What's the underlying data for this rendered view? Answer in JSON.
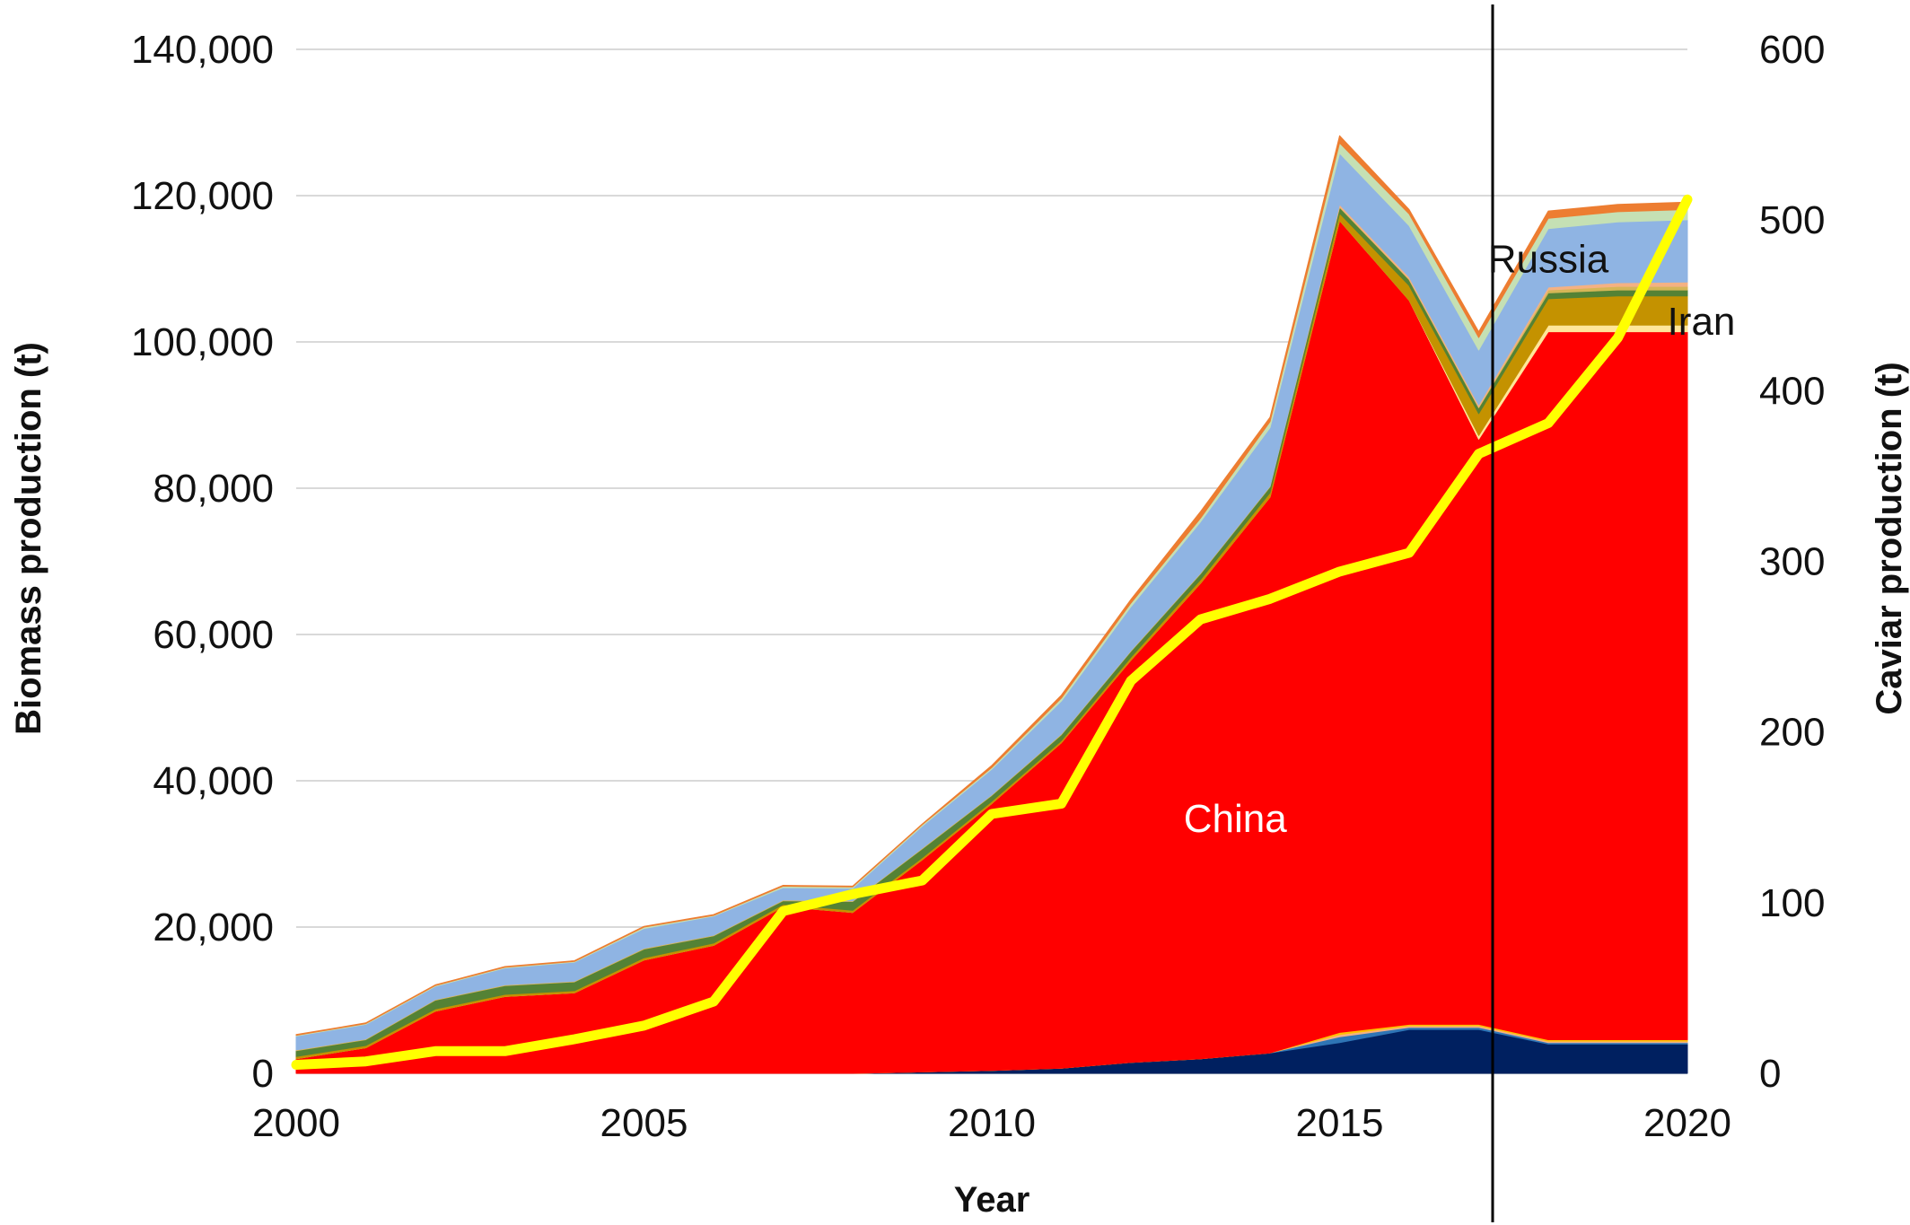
{
  "chart_data": {
    "type": "area",
    "xlabel": "Year",
    "ylabel": "Biomass production (t)",
    "y2label": "Caviar production (t)",
    "x": [
      2000,
      2001,
      2002,
      2003,
      2004,
      2005,
      2006,
      2007,
      2008,
      2009,
      2010,
      2011,
      2012,
      2013,
      2014,
      2015,
      2016,
      2017,
      2018,
      2019,
      2020
    ],
    "xlim": [
      2000,
      2020
    ],
    "x_ticks": [
      "2000",
      "2005",
      "2010",
      "2015",
      "2020"
    ],
    "ylim": [
      0,
      140000
    ],
    "y_ticks": [
      "0",
      "20,000",
      "40,000",
      "60,000",
      "80,000",
      "100,000",
      "120,000",
      "140,000"
    ],
    "y2lim": [
      0,
      600
    ],
    "y2_ticks": [
      "0",
      "100",
      "200",
      "300",
      "400",
      "500",
      "600"
    ],
    "grid": true,
    "vertical_marker_x": 2017.2,
    "stacked_layers": [
      {
        "color": "#002060",
        "values": [
          0,
          0,
          0,
          0,
          0,
          0,
          0,
          0,
          0,
          200,
          400,
          700,
          1500,
          2000,
          2800,
          4200,
          6000,
          6000,
          4000,
          4000,
          4000
        ]
      },
      {
        "color": "#2e75b6",
        "values": [
          0,
          0,
          0,
          0,
          0,
          0,
          0,
          0,
          0,
          0,
          0,
          0,
          0,
          0,
          0,
          800,
          300,
          300,
          200,
          200,
          200
        ]
      },
      {
        "color": "#f4b183",
        "values": [
          0,
          0,
          0,
          0,
          0,
          0,
          0,
          0,
          0,
          0,
          0,
          0,
          0,
          0,
          0,
          300,
          200,
          200,
          200,
          200,
          200
        ]
      },
      {
        "color": "#ffc000",
        "values": [
          0,
          0,
          0,
          0,
          0,
          0,
          0,
          0,
          0,
          0,
          0,
          0,
          0,
          0,
          0,
          300,
          200,
          200,
          200,
          200,
          200
        ]
      },
      {
        "color": "#ff0000",
        "values": [
          2000,
          3500,
          8500,
          10500,
          11000,
          15500,
          17500,
          22800,
          22000,
          29000,
          36500,
          44500,
          55000,
          65000,
          76000,
          111000,
          99000,
          80000,
          96800,
          96800,
          96800
        ]
      },
      {
        "color": "#ffe699",
        "values": [
          0,
          0,
          0,
          0,
          0,
          0,
          0,
          0,
          0,
          0,
          0,
          0,
          0,
          0,
          0,
          0,
          0,
          500,
          900,
          900,
          900
        ]
      },
      {
        "color": "#c49200",
        "values": [
          300,
          300,
          300,
          300,
          300,
          300,
          300,
          300,
          300,
          300,
          300,
          300,
          400,
          500,
          600,
          1000,
          2000,
          3000,
          3600,
          4000,
          4000
        ]
      },
      {
        "color": "#548235",
        "values": [
          800,
          800,
          1200,
          1200,
          1200,
          1200,
          1000,
          500,
          1200,
          1200,
          800,
          800,
          800,
          800,
          800,
          800,
          800,
          800,
          800,
          800,
          800
        ]
      },
      {
        "color": "#d6b656",
        "values": [
          100,
          100,
          100,
          100,
          100,
          100,
          100,
          100,
          100,
          100,
          100,
          100,
          100,
          100,
          100,
          100,
          100,
          100,
          400,
          500,
          500
        ]
      },
      {
        "color": "#f4b183",
        "values": [
          0,
          0,
          0,
          0,
          0,
          0,
          0,
          0,
          0,
          0,
          0,
          0,
          0,
          0,
          0,
          300,
          300,
          300,
          400,
          500,
          600
        ]
      },
      {
        "color": "#8fb4e3",
        "values": [
          1900,
          2000,
          1800,
          2300,
          2600,
          2700,
          2600,
          1700,
          1700,
          3000,
          3500,
          4500,
          6000,
          7000,
          8000,
          7000,
          7000,
          7500,
          8000,
          8300,
          8500
        ]
      },
      {
        "color": "#c5e0b4",
        "values": [
          100,
          100,
          100,
          100,
          100,
          200,
          100,
          200,
          200,
          200,
          200,
          400,
          500,
          500,
          800,
          1400,
          1600,
          1700,
          1400,
          1400,
          1400
        ]
      },
      {
        "color": "#ed7d31",
        "values": [
          100,
          100,
          100,
          100,
          100,
          100,
          100,
          100,
          100,
          100,
          300,
          400,
          500,
          900,
          600,
          1000,
          600,
          800,
          1000,
          1000,
          1000
        ]
      }
    ],
    "caviar_line": {
      "color": "#ffff00",
      "values": [
        5,
        7,
        13,
        13,
        20,
        28,
        42,
        95,
        105,
        113,
        152,
        158,
        230,
        266,
        278,
        294,
        305,
        363,
        381,
        431,
        512
      ]
    },
    "annotations": [
      {
        "text": "China",
        "x": 2013.5,
        "y": 33000,
        "color": "#ffffff"
      },
      {
        "text": "Russia",
        "x": 2018.0,
        "y": 109500,
        "color": "#111111"
      },
      {
        "text": "Iran",
        "x": 2020.2,
        "y": 101000,
        "color": "#111111"
      }
    ]
  }
}
